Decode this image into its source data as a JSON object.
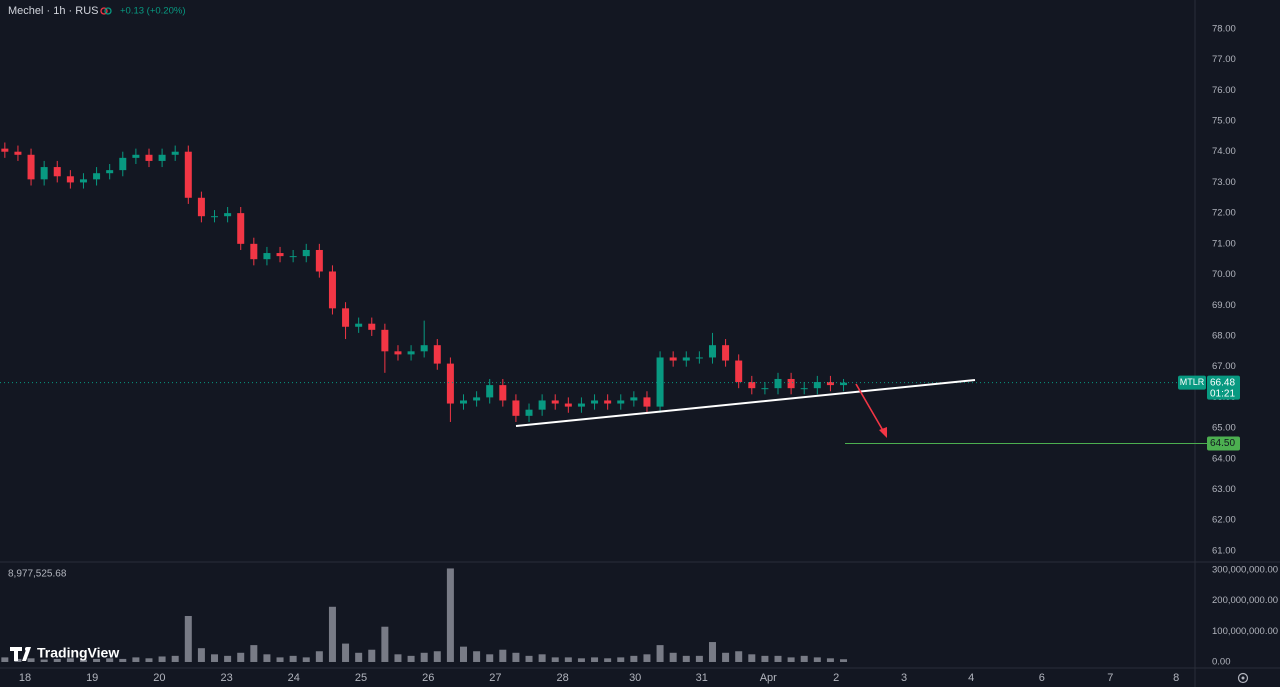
{
  "header": {
    "symbol": "Mechel · 1h · RUS",
    "change": "+0.13 (+0.20%)",
    "watermark": "TradingView"
  },
  "chart_data": [
    {
      "type": "candlestick",
      "up_color": "#089981",
      "down_color": "#f23645",
      "x": [
        -0.3,
        -0.105,
        0.09,
        0.285,
        0.48,
        0.675,
        0.87,
        1.065,
        1.26,
        1.455,
        1.65,
        1.845,
        2.04,
        2.235,
        2.43,
        2.625,
        2.82,
        3.015,
        3.21,
        3.405,
        3.6,
        3.795,
        3.99,
        4.185,
        4.38,
        4.575,
        4.77,
        4.965,
        5.16,
        5.355,
        5.55,
        5.745,
        5.94,
        6.135,
        6.33,
        6.525,
        6.72,
        6.915,
        7.11,
        7.305,
        7.5,
        7.695,
        7.89,
        8.085,
        8.28,
        8.475,
        8.67,
        8.865,
        9.06,
        9.255,
        9.45,
        9.645,
        9.84,
        10.035,
        10.23,
        10.425,
        10.62,
        10.815,
        11.01,
        11.205,
        11.4,
        11.595,
        11.79,
        11.985,
        12.18
      ],
      "open": [
        74.1,
        74.0,
        73.9,
        73.1,
        73.5,
        73.2,
        73.0,
        73.1,
        73.3,
        73.4,
        73.8,
        73.9,
        73.7,
        73.9,
        74.0,
        72.5,
        71.9,
        71.9,
        72.0,
        71.0,
        70.5,
        70.7,
        70.6,
        70.6,
        70.8,
        70.1,
        68.9,
        68.3,
        68.4,
        68.2,
        67.5,
        67.4,
        67.5,
        67.7,
        67.1,
        65.8,
        65.9,
        66.0,
        66.4,
        65.9,
        65.4,
        65.6,
        65.9,
        65.8,
        65.7,
        65.8,
        65.9,
        65.8,
        65.9,
        66.0,
        65.7,
        67.3,
        67.2,
        67.3,
        67.3,
        67.7,
        67.2,
        66.5,
        66.3,
        66.3,
        66.6,
        66.3,
        66.3,
        66.5,
        66.4
      ],
      "high": [
        74.3,
        74.2,
        74.1,
        73.7,
        73.7,
        73.4,
        73.3,
        73.5,
        73.6,
        74.0,
        74.1,
        74.1,
        74.1,
        74.2,
        74.2,
        72.7,
        72.1,
        72.2,
        72.2,
        71.2,
        70.9,
        70.9,
        70.8,
        71.0,
        71.0,
        70.3,
        69.1,
        68.6,
        68.6,
        68.4,
        67.7,
        67.7,
        68.5,
        67.9,
        67.3,
        66.1,
        66.2,
        66.6,
        66.6,
        66.1,
        65.8,
        66.1,
        66.1,
        66.0,
        66.0,
        66.1,
        66.1,
        66.1,
        66.2,
        66.2,
        67.5,
        67.5,
        67.5,
        67.5,
        68.1,
        67.9,
        67.4,
        66.7,
        66.5,
        66.8,
        66.8,
        66.5,
        66.7,
        66.7,
        66.6
      ],
      "low": [
        73.8,
        73.7,
        72.9,
        72.9,
        73.0,
        72.8,
        72.8,
        72.9,
        73.1,
        73.2,
        73.6,
        73.5,
        73.5,
        73.7,
        72.3,
        71.7,
        71.7,
        71.7,
        70.8,
        70.3,
        70.3,
        70.4,
        70.4,
        70.4,
        69.9,
        68.7,
        67.9,
        68.1,
        68.0,
        66.8,
        67.2,
        67.2,
        67.3,
        66.9,
        65.2,
        65.6,
        65.7,
        65.8,
        65.7,
        65.2,
        65.2,
        65.4,
        65.6,
        65.5,
        65.5,
        65.6,
        65.6,
        65.6,
        65.7,
        65.5,
        65.5,
        67.0,
        67.0,
        67.1,
        67.1,
        67.0,
        66.3,
        66.1,
        66.1,
        66.1,
        66.1,
        66.1,
        66.1,
        66.2,
        66.2
      ],
      "close": [
        74.0,
        73.9,
        73.1,
        73.5,
        73.2,
        73.0,
        73.1,
        73.3,
        73.4,
        73.8,
        73.9,
        73.7,
        73.9,
        74.0,
        72.5,
        71.9,
        71.9,
        72.0,
        71.0,
        70.5,
        70.7,
        70.6,
        70.6,
        70.8,
        70.1,
        68.9,
        68.3,
        68.4,
        68.2,
        67.5,
        67.4,
        67.5,
        67.7,
        67.1,
        65.8,
        65.9,
        66.0,
        66.4,
        65.9,
        65.4,
        65.6,
        65.9,
        65.8,
        65.7,
        65.8,
        65.9,
        65.8,
        65.9,
        66.0,
        65.7,
        67.3,
        67.2,
        67.3,
        67.3,
        67.7,
        67.2,
        66.5,
        66.3,
        66.3,
        66.6,
        66.3,
        66.3,
        66.5,
        66.4,
        66.48
      ],
      "xlim": [
        -0.372,
        17.41
      ],
      "xticks": [
        {
          "value": 0,
          "label": "18"
        },
        {
          "value": 1,
          "label": "19"
        },
        {
          "value": 2,
          "label": "20"
        },
        {
          "value": 3,
          "label": "23"
        },
        {
          "value": 4,
          "label": "24"
        },
        {
          "value": 5,
          "label": "25"
        },
        {
          "value": 6,
          "label": "26"
        },
        {
          "value": 7,
          "label": "27"
        },
        {
          "value": 8,
          "label": "28"
        },
        {
          "value": 9.08,
          "label": "30"
        },
        {
          "value": 10.07,
          "label": "31"
        },
        {
          "value": 11.06,
          "label": "Apr"
        },
        {
          "value": 12.07,
          "label": "2"
        },
        {
          "value": 13.08,
          "label": "3"
        },
        {
          "value": 14.08,
          "label": "4"
        },
        {
          "value": 15.13,
          "label": "6"
        },
        {
          "value": 16.15,
          "label": "7"
        },
        {
          "value": 17.13,
          "label": "8"
        }
      ],
      "ylim": [
        60.64,
        78.94
      ],
      "yticks": [
        {
          "value": 61,
          "label": "61.00"
        },
        {
          "value": 62,
          "label": "62.00"
        },
        {
          "value": 63,
          "label": "63.00"
        },
        {
          "value": 64,
          "label": "64.00"
        },
        {
          "value": 65,
          "label": "65.00"
        },
        {
          "value": 66,
          "label": "66.00"
        },
        {
          "value": 67,
          "label": "67.00"
        },
        {
          "value": 68,
          "label": "68.00"
        },
        {
          "value": 69,
          "label": "69.00"
        },
        {
          "value": 70,
          "label": "70.00"
        },
        {
          "value": 71,
          "label": "71.00"
        },
        {
          "value": 72,
          "label": "72.00"
        },
        {
          "value": 73,
          "label": "73.00"
        },
        {
          "value": 74,
          "label": "74.00"
        },
        {
          "value": 75,
          "label": "75.00"
        },
        {
          "value": 76,
          "label": "76.00"
        },
        {
          "value": 77,
          "label": "77.00"
        },
        {
          "value": 78,
          "label": "78.00"
        }
      ],
      "grid": false,
      "last_price": {
        "ticker": "MTLR",
        "value": 66.48,
        "countdown": "01:21",
        "color": "#089981"
      },
      "target": {
        "value": 64.5,
        "label": "64.50",
        "color": "#4caf50"
      }
    },
    {
      "type": "bar",
      "color": "#787b86",
      "x": [
        -0.3,
        -0.105,
        0.09,
        0.285,
        0.48,
        0.675,
        0.87,
        1.065,
        1.26,
        1.455,
        1.65,
        1.845,
        2.04,
        2.235,
        2.43,
        2.625,
        2.82,
        3.015,
        3.21,
        3.405,
        3.6,
        3.795,
        3.99,
        4.185,
        4.38,
        4.575,
        4.77,
        4.965,
        5.16,
        5.355,
        5.55,
        5.745,
        5.94,
        6.135,
        6.33,
        6.525,
        6.72,
        6.915,
        7.11,
        7.305,
        7.5,
        7.695,
        7.89,
        8.085,
        8.28,
        8.475,
        8.67,
        8.865,
        9.06,
        9.255,
        9.45,
        9.645,
        9.84,
        10.035,
        10.23,
        10.425,
        10.62,
        10.815,
        11.01,
        11.205,
        11.4,
        11.595,
        11.79,
        11.985,
        12.18
      ],
      "values": [
        15000000,
        10000000,
        12000000,
        8000000,
        10000000,
        12000000,
        8000000,
        10000000,
        12000000,
        10000000,
        15000000,
        12000000,
        18000000,
        20000000,
        150000000,
        45000000,
        25000000,
        20000000,
        30000000,
        55000000,
        25000000,
        15000000,
        20000000,
        15000000,
        35000000,
        180000000,
        60000000,
        30000000,
        40000000,
        115000000,
        25000000,
        20000000,
        30000000,
        35000000,
        305000000,
        50000000,
        35000000,
        25000000,
        40000000,
        30000000,
        20000000,
        25000000,
        15000000,
        15000000,
        12000000,
        15000000,
        12000000,
        15000000,
        20000000,
        25000000,
        55000000,
        30000000,
        20000000,
        20000000,
        65000000,
        30000000,
        35000000,
        25000000,
        20000000,
        20000000,
        15000000,
        20000000,
        15000000,
        12000000,
        8977525.68
      ],
      "last_volume": {
        "value": 8977525.68,
        "label": "8,977,525.68"
      },
      "ylim": [
        -19600000,
        326000000
      ],
      "yticks": [
        {
          "value": 0,
          "label": "0.00"
        },
        {
          "value": 100000000,
          "label": "100,000,000.00"
        },
        {
          "value": 200000000,
          "label": "200,000,000.00"
        },
        {
          "value": 300000000,
          "label": "300,000,000.00"
        }
      ]
    }
  ]
}
